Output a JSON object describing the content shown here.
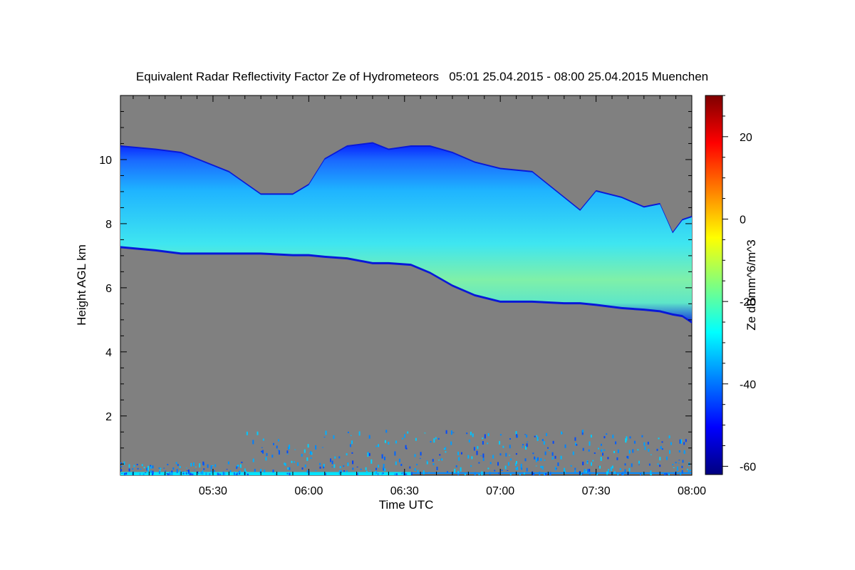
{
  "chart_data": {
    "type": "heatmap",
    "title": "Equivalent Radar Reflectivity Factor Ze of Hydrometeors   05:01 25.04.2015 - 08:00 25.04.2015 Muenchen",
    "xlabel": "Time UTC",
    "ylabel": "Height AGL km",
    "colorbar_label": "Ze dBmm^6/m^3",
    "x_range_minutes_utc": [
      301,
      480
    ],
    "y_range_km": [
      0.15,
      12.0
    ],
    "x_ticks": [
      {
        "label": "05:30",
        "minute": 330
      },
      {
        "label": "06:00",
        "minute": 360
      },
      {
        "label": "06:30",
        "minute": 390
      },
      {
        "label": "07:00",
        "minute": 420
      },
      {
        "label": "07:30",
        "minute": 450
      },
      {
        "label": "08:00",
        "minute": 480
      }
    ],
    "y_ticks": [
      {
        "label": "2",
        "value": 2
      },
      {
        "label": "4",
        "value": 4
      },
      {
        "label": "6",
        "value": 6
      },
      {
        "label": "8",
        "value": 8
      },
      {
        "label": "10",
        "value": 10
      }
    ],
    "colorbar_range": [
      -62,
      30
    ],
    "colorbar_ticks": [
      {
        "label": "-60",
        "value": -60
      },
      {
        "label": "-40",
        "value": -40
      },
      {
        "label": "-20",
        "value": -20
      },
      {
        "label": "0",
        "value": 0
      },
      {
        "label": "20",
        "value": 20
      }
    ],
    "no_data_color": "#808080",
    "colormap": "jet",
    "cloud_layer": {
      "profile": [
        {
          "minute": 301,
          "top_km": 10.4,
          "base_km": 7.3
        },
        {
          "minute": 312,
          "top_km": 10.3,
          "base_km": 7.2
        },
        {
          "minute": 320,
          "top_km": 10.2,
          "base_km": 7.1
        },
        {
          "minute": 335,
          "top_km": 9.6,
          "base_km": 7.1
        },
        {
          "minute": 345,
          "top_km": 8.9,
          "base_km": 7.1
        },
        {
          "minute": 355,
          "top_km": 8.9,
          "base_km": 7.05
        },
        {
          "minute": 360,
          "top_km": 9.2,
          "base_km": 7.05
        },
        {
          "minute": 365,
          "top_km": 10.0,
          "base_km": 7.0
        },
        {
          "minute": 372,
          "top_km": 10.4,
          "base_km": 6.95
        },
        {
          "minute": 380,
          "top_km": 10.5,
          "base_km": 6.8
        },
        {
          "minute": 385,
          "top_km": 10.3,
          "base_km": 6.8
        },
        {
          "minute": 392,
          "top_km": 10.4,
          "base_km": 6.75
        },
        {
          "minute": 398,
          "top_km": 10.4,
          "base_km": 6.5
        },
        {
          "minute": 405,
          "top_km": 10.2,
          "base_km": 6.1
        },
        {
          "minute": 412,
          "top_km": 9.9,
          "base_km": 5.8
        },
        {
          "minute": 420,
          "top_km": 9.7,
          "base_km": 5.6
        },
        {
          "minute": 430,
          "top_km": 9.6,
          "base_km": 5.6
        },
        {
          "minute": 440,
          "top_km": 8.8,
          "base_km": 5.55
        },
        {
          "minute": 445,
          "top_km": 8.4,
          "base_km": 5.55
        },
        {
          "minute": 450,
          "top_km": 9.0,
          "base_km": 5.5
        },
        {
          "minute": 458,
          "top_km": 8.8,
          "base_km": 5.4
        },
        {
          "minute": 465,
          "top_km": 8.5,
          "base_km": 5.35
        },
        {
          "minute": 470,
          "top_km": 8.6,
          "base_km": 5.3
        },
        {
          "minute": 474,
          "top_km": 7.7,
          "base_km": 5.2
        },
        {
          "minute": 477,
          "top_km": 8.1,
          "base_km": 5.15
        },
        {
          "minute": 480,
          "top_km": 8.2,
          "base_km": 4.95
        }
      ],
      "reflectivity_dbz": {
        "top_edge": -45,
        "upper": -32,
        "core": -22,
        "peak": -15,
        "base_edge": -50
      }
    },
    "ground_clutter": {
      "height_range_km": [
        0.2,
        1.6
      ],
      "bright_band_end_minute": 392,
      "reflectivity_dbz": {
        "typical": -38,
        "bright_band": -30
      }
    }
  }
}
